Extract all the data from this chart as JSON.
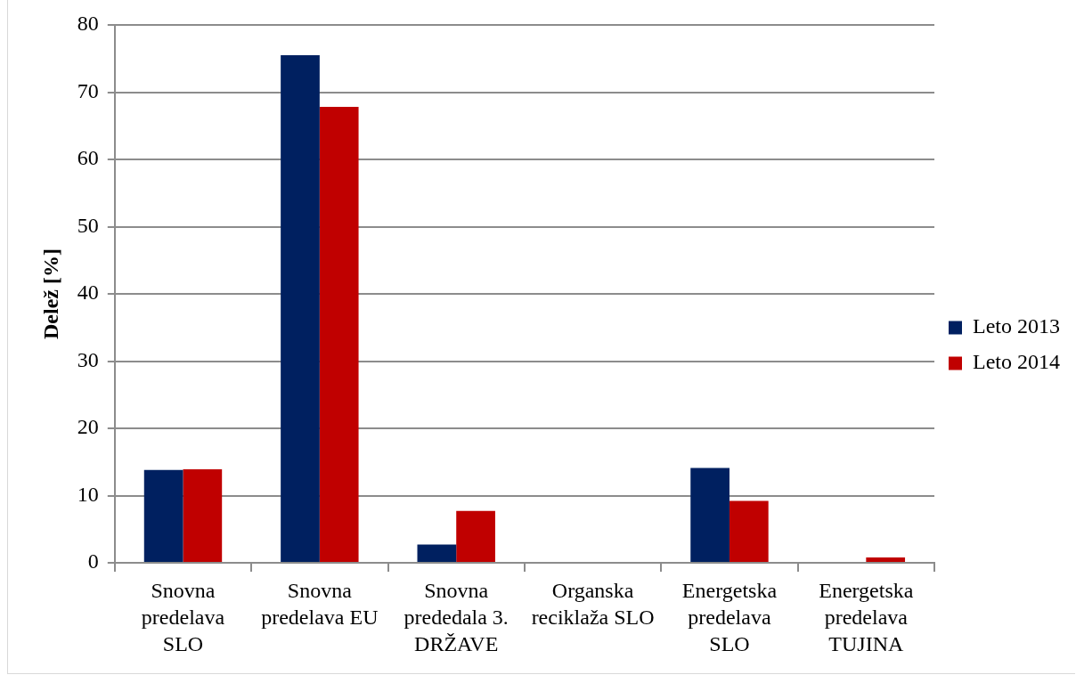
{
  "chart_data": {
    "type": "bar",
    "ylabel": "Delež [%]",
    "categories": [
      "Snovna predelava SLO",
      "Snovna predelava EU",
      "Snovna prededala 3. DRŽAVE",
      "Organska reciklaža SLO",
      "Energetska predelava SLO",
      "Energetska predelava TUJINA"
    ],
    "series": [
      {
        "name": "Leto 2013",
        "color": "#002060",
        "values": [
          13.8,
          75.5,
          2.7,
          0,
          14.1,
          0
        ]
      },
      {
        "name": "Leto 2014",
        "color": "#c00000",
        "values": [
          13.9,
          67.8,
          7.7,
          0,
          9.2,
          0.8
        ]
      }
    ],
    "ylim": [
      0,
      80
    ],
    "yticks": [
      0,
      10,
      20,
      30,
      40,
      50,
      60,
      70,
      80
    ],
    "grid": "y",
    "legend": "right"
  }
}
